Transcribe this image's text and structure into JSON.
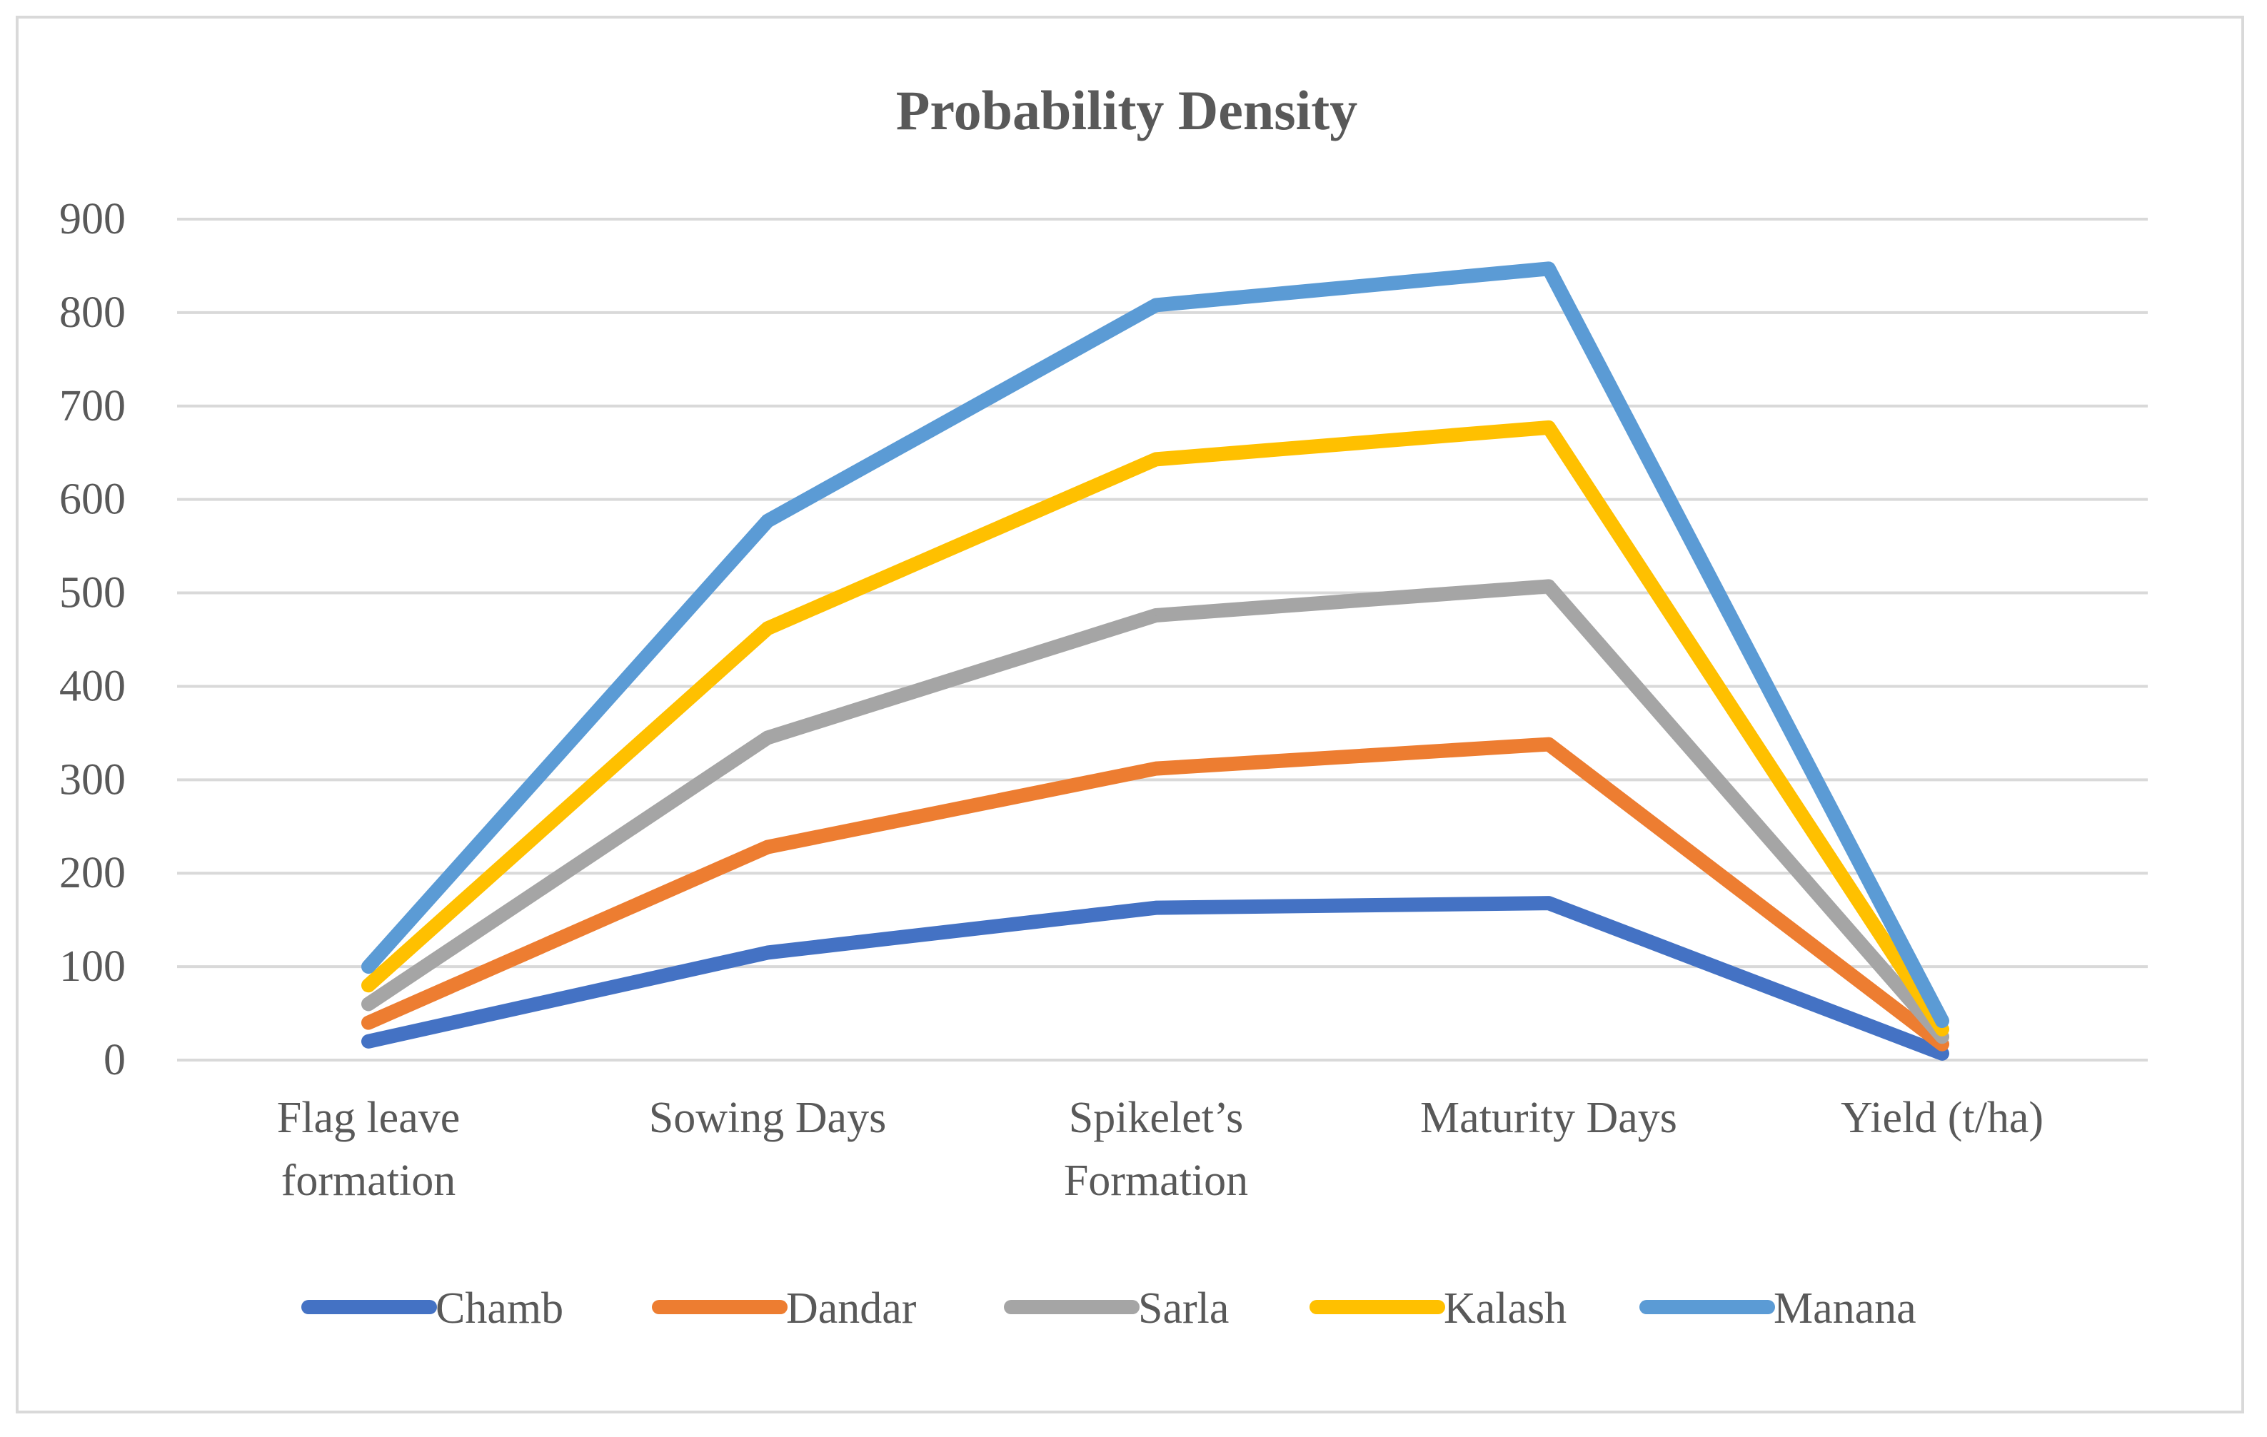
{
  "chart_data": {
    "type": "line",
    "title": "Probability Density",
    "xlabel": "",
    "ylabel": "",
    "ylim": [
      0,
      900
    ],
    "yticks": [
      0,
      100,
      200,
      300,
      400,
      500,
      600,
      700,
      800,
      900
    ],
    "grid": true,
    "legend_position": "bottom",
    "categories": [
      [
        "Flag leave",
        "formation"
      ],
      [
        "Sowing Days"
      ],
      [
        "Spikelet’s",
        "Formation"
      ],
      [
        "Maturity  Days"
      ],
      [
        "Yield (t/ha)"
      ]
    ],
    "series": [
      {
        "name": "Chamb",
        "color": "#4472c4",
        "values": [
          20,
          115,
          163,
          168,
          7
        ]
      },
      {
        "name": "Dandar",
        "color": "#ed7d31",
        "values": [
          40,
          228,
          312,
          338,
          17
        ]
      },
      {
        "name": "Sarla",
        "color": "#a5a5a5",
        "values": [
          60,
          345,
          476,
          507,
          25
        ]
      },
      {
        "name": "Kalash",
        "color": "#ffc000",
        "values": [
          80,
          462,
          643,
          677,
          33
        ]
      },
      {
        "name": "Manana",
        "color": "#5b9bd5",
        "values": [
          100,
          577,
          808,
          847,
          42
        ]
      }
    ]
  }
}
